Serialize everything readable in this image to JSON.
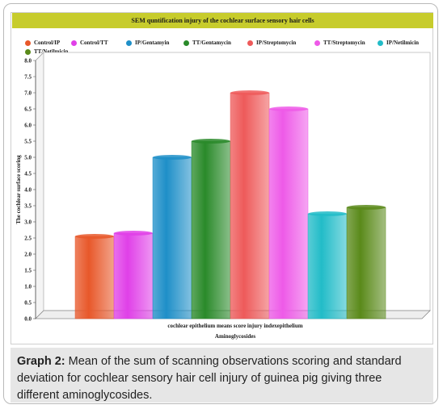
{
  "chart_data": {
    "type": "bar",
    "title": "SEM quntification injury of the cochlear surface sensory hair cells",
    "xlabel": "Aminoglycosides",
    "category_label": "cochlear epithelium means score injury indexepithelium",
    "ylabel": "The cochlear surface scoring",
    "ylim": [
      0,
      8
    ],
    "yticks": [
      "0.0",
      "0.5",
      "1.0",
      "1.5",
      "2.0",
      "2.5",
      "3.0",
      "3.5",
      "4.0",
      "4.5",
      "5.0",
      "5.5",
      "6.0",
      "6.5",
      "7.0",
      "7.5",
      "8.0"
    ],
    "legend_position": "top",
    "series": [
      {
        "name": "Control/IP",
        "value": 2.55,
        "color": "#e8582a"
      },
      {
        "name": "Control/TT",
        "value": 2.65,
        "color": "#e040e8"
      },
      {
        "name": "IP/Gentamyin",
        "value": 5.0,
        "color": "#1e8fc8"
      },
      {
        "name": "TT/Gentamycin",
        "value": 5.5,
        "color": "#2a8a2a"
      },
      {
        "name": "IP/Streptomycin",
        "value": 7.0,
        "color": "#ee5a5a"
      },
      {
        "name": "TT/Streptomycin",
        "value": 6.5,
        "color": "#ee5ae8"
      },
      {
        "name": "IP/Netilmicin",
        "value": 3.25,
        "color": "#22bcc8"
      },
      {
        "name": "TT/Netilmicin",
        "value": 3.45,
        "color": "#5a8a1a"
      }
    ]
  },
  "caption": {
    "label": "Graph 2:",
    "text": "Mean of the sum of scanning observations scoring and standard deviation for cochlear sensory hair cell injury of guinea pig giving three different aminoglycosides."
  }
}
